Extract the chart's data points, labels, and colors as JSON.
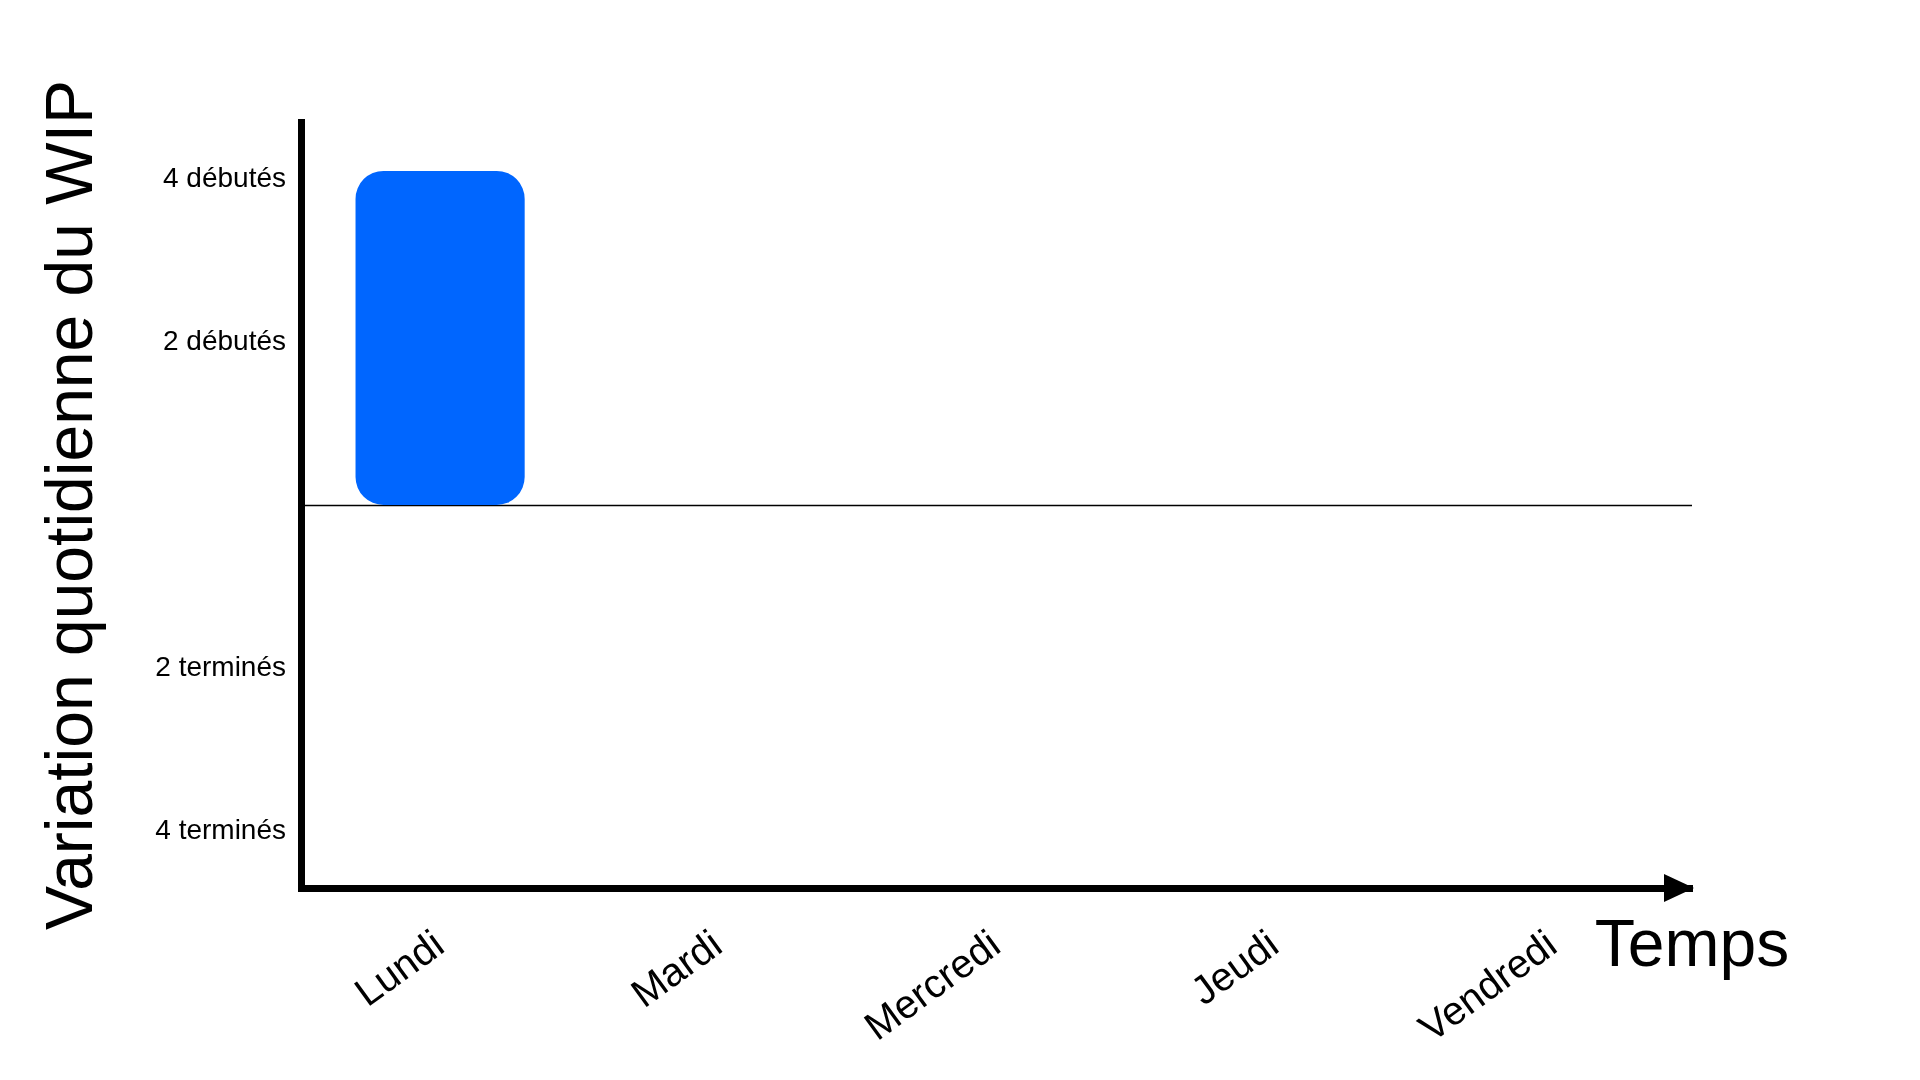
{
  "chart_data": {
    "type": "bar",
    "xlabel": "Temps",
    "ylabel": "Variation quotidienne du WIP",
    "categories": [
      "Lundi",
      "Mardi",
      "Mercredi",
      "Jeudi",
      "Vendredi"
    ],
    "values": [
      4.1,
      null,
      null,
      null,
      null
    ],
    "color": "#0066ff",
    "ylim": [
      -4.7,
      4.7
    ],
    "yticks": [
      {
        "value": -4,
        "label": "4 terminés"
      },
      {
        "value": -2,
        "label": "2 terminés"
      },
      {
        "value": 2,
        "label": "2 débutés"
      },
      {
        "value": 4,
        "label": "4 débutés"
      }
    ],
    "ref_lines": [
      {
        "axis": "y",
        "value": 0,
        "color": "#000000"
      }
    ]
  }
}
